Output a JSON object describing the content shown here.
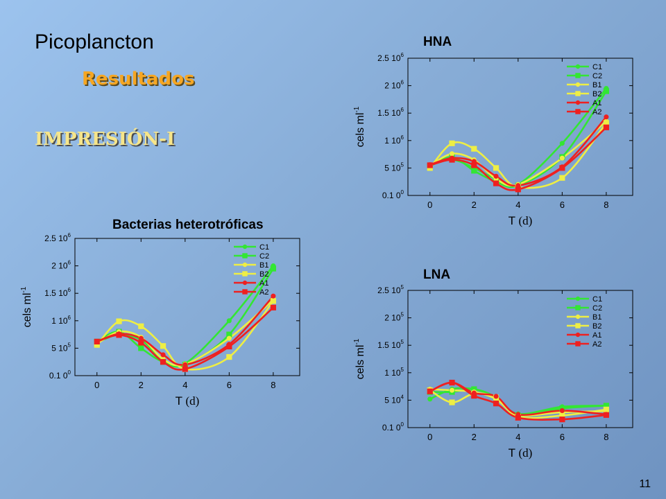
{
  "slide": {
    "title": "Picoplancton",
    "subtitle": "Resultados",
    "heading": "IMPRESIÓN-I",
    "page_number": "11"
  },
  "colors": {
    "C1": "#33e633",
    "C2": "#33e633",
    "B1": "#eeee44",
    "B2": "#eeee44",
    "A1": "#ee2020",
    "A2": "#ee2020"
  },
  "chart_data": [
    {
      "id": "bact",
      "type": "line",
      "title": "Bacterias heterotróficas",
      "xlabel_main": "T",
      "xlabel_unit": "(d)",
      "ylabel_main": "cels ml",
      "ylabel_sup": "-1",
      "x_ticks": [
        0,
        2,
        4,
        6,
        8
      ],
      "xlim": [
        -1,
        9.2
      ],
      "ylim": [
        0,
        2500000
      ],
      "y_tick_values": [
        0,
        500000,
        1000000,
        1500000,
        2000000,
        2500000
      ],
      "y_tick_labels": [
        [
          "0.1 0",
          "0"
        ],
        [
          "5 10",
          "5"
        ],
        [
          "1 10",
          "6"
        ],
        [
          "1.5 10",
          "6"
        ],
        [
          "2 10",
          "6"
        ],
        [
          "2.5 10",
          "6"
        ]
      ],
      "legend_position": "top-right",
      "series": [
        {
          "name": "C1",
          "marker": "circle",
          "x": [
            0,
            1,
            2,
            3,
            4,
            6,
            8
          ],
          "y": [
            600000,
            750000,
            650000,
            300000,
            220000,
            1000000,
            2000000
          ]
        },
        {
          "name": "C2",
          "marker": "square",
          "x": [
            0,
            1,
            2,
            3,
            4,
            6,
            8
          ],
          "y": [
            620000,
            800000,
            500000,
            250000,
            200000,
            750000,
            1950000
          ]
        },
        {
          "name": "B1",
          "marker": "circle",
          "x": [
            0,
            1,
            2,
            3,
            4,
            6,
            8
          ],
          "y": [
            580000,
            800000,
            700000,
            300000,
            210000,
            680000,
            1380000
          ]
        },
        {
          "name": "B2",
          "marker": "square",
          "x": [
            0,
            1,
            2,
            3,
            4,
            6,
            8
          ],
          "y": [
            560000,
            990000,
            900000,
            540000,
            120000,
            340000,
            1360000
          ]
        },
        {
          "name": "A1",
          "marker": "circle",
          "x": [
            0,
            1,
            2,
            3,
            4,
            6,
            8
          ],
          "y": [
            620000,
            760000,
            680000,
            380000,
            200000,
            570000,
            1450000
          ]
        },
        {
          "name": "A2",
          "marker": "square",
          "x": [
            0,
            1,
            2,
            3,
            4,
            6,
            8
          ],
          "y": [
            620000,
            740000,
            600000,
            250000,
            120000,
            530000,
            1240000
          ]
        }
      ]
    },
    {
      "id": "hna",
      "type": "line",
      "title": "HNA",
      "xlabel_main": "T",
      "xlabel_unit": "(d)",
      "ylabel_main": "cels ml",
      "ylabel_sup": "-1",
      "x_ticks": [
        0,
        2,
        4,
        6,
        8
      ],
      "xlim": [
        -1,
        9.2
      ],
      "ylim": [
        0,
        2500000
      ],
      "y_tick_values": [
        0,
        500000,
        1000000,
        1500000,
        2000000,
        2500000
      ],
      "y_tick_labels": [
        [
          "0.1 0",
          "0"
        ],
        [
          "5 10",
          "5"
        ],
        [
          "1 10",
          "6"
        ],
        [
          "1.5 10",
          "6"
        ],
        [
          "2 10",
          "6"
        ],
        [
          "2.5 10",
          "6"
        ]
      ],
      "legend_position": "top-right",
      "series": [
        {
          "name": "C1",
          "marker": "circle",
          "x": [
            0,
            1,
            2,
            3,
            4,
            6,
            8
          ],
          "y": [
            550000,
            650000,
            500000,
            300000,
            200000,
            950000,
            1950000
          ]
        },
        {
          "name": "C2",
          "marker": "square",
          "x": [
            0,
            1,
            2,
            3,
            4,
            6,
            8
          ],
          "y": [
            530000,
            700000,
            450000,
            250000,
            180000,
            700000,
            1900000
          ]
        },
        {
          "name": "B1",
          "marker": "circle",
          "x": [
            0,
            1,
            2,
            3,
            4,
            6,
            8
          ],
          "y": [
            540000,
            760000,
            650000,
            300000,
            200000,
            680000,
            1350000
          ]
        },
        {
          "name": "B2",
          "marker": "square",
          "x": [
            0,
            1,
            2,
            3,
            4,
            6,
            8
          ],
          "y": [
            500000,
            950000,
            850000,
            500000,
            150000,
            320000,
            1320000
          ]
        },
        {
          "name": "A1",
          "marker": "circle",
          "x": [
            0,
            1,
            2,
            3,
            4,
            6,
            8
          ],
          "y": [
            560000,
            680000,
            620000,
            350000,
            180000,
            520000,
            1430000
          ]
        },
        {
          "name": "A2",
          "marker": "square",
          "x": [
            0,
            1,
            2,
            3,
            4,
            6,
            8
          ],
          "y": [
            550000,
            650000,
            550000,
            220000,
            110000,
            500000,
            1240000
          ]
        }
      ]
    },
    {
      "id": "lna",
      "type": "line",
      "title": "LNA",
      "xlabel_main": "T",
      "xlabel_unit": "(d)",
      "ylabel_main": "cels ml",
      "ylabel_sup": "-1",
      "x_ticks": [
        0,
        2,
        4,
        6,
        8
      ],
      "xlim": [
        -1,
        9.2
      ],
      "ylim": [
        0,
        250000
      ],
      "y_tick_values": [
        0,
        50000,
        100000,
        150000,
        200000,
        250000
      ],
      "y_tick_labels": [
        [
          "0.1 0",
          "0"
        ],
        [
          "5 10",
          "4"
        ],
        [
          "1 10",
          "5"
        ],
        [
          "1.5 10",
          "5"
        ],
        [
          "2 10",
          "5"
        ],
        [
          "2.5 10",
          "5"
        ]
      ],
      "legend_position": "top-right",
      "series": [
        {
          "name": "C1",
          "marker": "circle",
          "x": [
            0,
            1,
            2,
            3,
            4,
            6,
            8
          ],
          "y": [
            52000,
            70000,
            70000,
            55000,
            25000,
            38000,
            40000
          ]
        },
        {
          "name": "C2",
          "marker": "square",
          "x": [
            0,
            1,
            2,
            3,
            4,
            6,
            8
          ],
          "y": [
            65000,
            65000,
            70000,
            55000,
            22000,
            35000,
            40000
          ]
        },
        {
          "name": "B1",
          "marker": "circle",
          "x": [
            0,
            1,
            2,
            3,
            4,
            6,
            8
          ],
          "y": [
            70000,
            68000,
            65000,
            52000,
            23000,
            28000,
            30000
          ]
        },
        {
          "name": "B2",
          "marker": "square",
          "x": [
            0,
            1,
            2,
            3,
            4,
            6,
            8
          ],
          "y": [
            68000,
            46000,
            62000,
            55000,
            20000,
            22000,
            33000
          ]
        },
        {
          "name": "A1",
          "marker": "circle",
          "x": [
            0,
            1,
            2,
            3,
            4,
            6,
            8
          ],
          "y": [
            66000,
            82000,
            63000,
            57000,
            24000,
            31000,
            24000
          ]
        },
        {
          "name": "A2",
          "marker": "square",
          "x": [
            0,
            1,
            2,
            3,
            4,
            6,
            8
          ],
          "y": [
            66000,
            82000,
            58000,
            44000,
            18000,
            15000,
            23000
          ]
        }
      ]
    }
  ]
}
